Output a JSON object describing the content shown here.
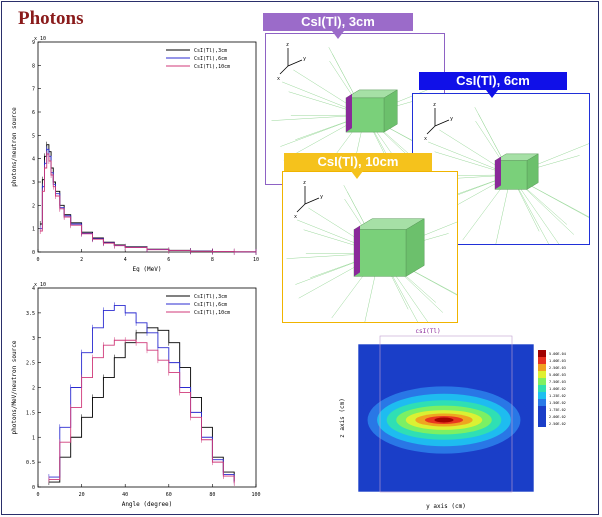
{
  "slide": {
    "title": "Photons"
  },
  "colors": {
    "title": "#8a1b1b",
    "tag_3cm": "#9b6bc9",
    "tag_6cm": "#1010e8",
    "tag_10cm": "#f5c21c",
    "frame_3cm": "#8e62c4",
    "frame_6cm": "#2030d8",
    "frame_10cm": "#f0b400",
    "crystal_green": "#7ad07a",
    "crystal_face": "#8a2a9a",
    "tracks": "#9ad89a"
  },
  "sims": [
    {
      "tag": "CsI(Tl), 3cm"
    },
    {
      "tag": "CsI(Tl), 6cm"
    },
    {
      "tag": "CsI(Tl), 10cm"
    }
  ],
  "axes_triad": {
    "x": "x",
    "y": "y",
    "z": "z"
  },
  "chart_data": [
    {
      "type": "line",
      "xlabel": "Eg (MeV)",
      "ylabel": "photons/neutron source",
      "xlim": [
        0,
        10
      ],
      "ylim": [
        0,
        9
      ],
      "xticks": [
        "0",
        "2",
        "4",
        "6",
        "8",
        "10"
      ],
      "yticks": [
        "0",
        "1",
        "2",
        "3",
        "4",
        "5",
        "6",
        "7",
        "8",
        "9"
      ],
      "y_scale_label": "x 10",
      "legend_position": "top-right",
      "series": [
        {
          "name": "CsI(Tl),3cm",
          "color": "#000000",
          "x": [
            0.1,
            0.2,
            0.3,
            0.4,
            0.5,
            0.6,
            0.7,
            0.8,
            1.0,
            1.2,
            1.5,
            2,
            2.5,
            3,
            3.5,
            4,
            5,
            6,
            7,
            8,
            9,
            10
          ],
          "y": [
            1.2,
            3.1,
            4.1,
            4.6,
            4.3,
            3.6,
            3.0,
            2.6,
            2.0,
            1.6,
            1.25,
            0.85,
            0.6,
            0.42,
            0.3,
            0.22,
            0.12,
            0.07,
            0.04,
            0.02,
            0.01,
            0.005
          ]
        },
        {
          "name": "CsI(Tl),6cm",
          "color": "#2b2bd0",
          "x": [
            0.1,
            0.2,
            0.3,
            0.4,
            0.5,
            0.6,
            0.7,
            0.8,
            1.0,
            1.2,
            1.5,
            2,
            2.5,
            3,
            3.5,
            4,
            5,
            6,
            7,
            8,
            9,
            10
          ],
          "y": [
            1.0,
            2.8,
            3.8,
            4.4,
            4.1,
            3.4,
            2.9,
            2.5,
            1.9,
            1.55,
            1.2,
            0.8,
            0.57,
            0.4,
            0.28,
            0.2,
            0.11,
            0.06,
            0.035,
            0.02,
            0.01,
            0.005
          ]
        },
        {
          "name": "CsI(Tl),10cm",
          "color": "#d03a7a",
          "x": [
            0.1,
            0.2,
            0.3,
            0.4,
            0.5,
            0.6,
            0.7,
            0.8,
            1.0,
            1.2,
            1.5,
            2,
            2.5,
            3,
            3.5,
            4,
            5,
            6,
            7,
            8,
            9,
            10
          ],
          "y": [
            0.9,
            2.6,
            3.6,
            4.2,
            3.9,
            3.3,
            2.8,
            2.4,
            1.85,
            1.5,
            1.15,
            0.78,
            0.55,
            0.38,
            0.27,
            0.19,
            0.1,
            0.06,
            0.03,
            0.018,
            0.01,
            0.005
          ]
        }
      ]
    },
    {
      "type": "line",
      "xlabel": "Angle (degree)",
      "ylabel": "photons/MeV/neutron source",
      "xlim": [
        0,
        100
      ],
      "ylim": [
        0,
        4
      ],
      "xticks": [
        "0",
        "20",
        "40",
        "60",
        "80",
        "100"
      ],
      "yticks": [
        "0",
        "0.5",
        "1",
        "1.5",
        "2",
        "2.5",
        "3",
        "3.5",
        "4"
      ],
      "y_scale_label": "x 10",
      "legend_position": "top-right",
      "series": [
        {
          "name": "CsI(Tl),3cm",
          "color": "#000000",
          "x": [
            5,
            10,
            15,
            20,
            25,
            30,
            35,
            40,
            45,
            50,
            55,
            60,
            65,
            70,
            75,
            80,
            85,
            90
          ],
          "y": [
            0.1,
            0.6,
            1.0,
            1.4,
            1.8,
            2.2,
            2.6,
            2.9,
            3.1,
            3.2,
            3.15,
            2.9,
            2.4,
            1.8,
            1.2,
            0.6,
            0.3,
            0.12
          ]
        },
        {
          "name": "CsI(Tl),6cm",
          "color": "#2b2bd0",
          "x": [
            5,
            10,
            15,
            20,
            25,
            30,
            35,
            40,
            45,
            50,
            55,
            60,
            65,
            70,
            75,
            80,
            85,
            90
          ],
          "y": [
            0.2,
            1.2,
            2.0,
            2.7,
            3.2,
            3.55,
            3.65,
            3.5,
            3.3,
            3.1,
            2.8,
            2.5,
            2.0,
            1.5,
            1.0,
            0.55,
            0.25,
            0.1
          ]
        },
        {
          "name": "CsI(Tl),10cm",
          "color": "#d03a7a",
          "x": [
            5,
            10,
            15,
            20,
            25,
            30,
            35,
            40,
            45,
            50,
            55,
            60,
            65,
            70,
            75,
            80,
            85,
            90
          ],
          "y": [
            0.15,
            0.9,
            1.6,
            2.2,
            2.6,
            2.85,
            2.95,
            2.95,
            2.9,
            2.75,
            2.55,
            2.3,
            1.9,
            1.4,
            0.95,
            0.5,
            0.22,
            0.08
          ]
        }
      ]
    },
    {
      "type": "heatmap",
      "title": "csI(Tl)",
      "xlabel": "y axis (cm)",
      "ylabel": "z axis (cm)",
      "colorbar_labels": [
        "2.50E-02",
        "2.00E-02",
        "1.75E-02",
        "1.50E-02",
        "1.25E-02",
        "1.00E-02",
        "7.50E-03",
        "5.00E-03",
        "2.50E-03",
        "1.00E-03",
        "5.00E-04"
      ]
    }
  ]
}
